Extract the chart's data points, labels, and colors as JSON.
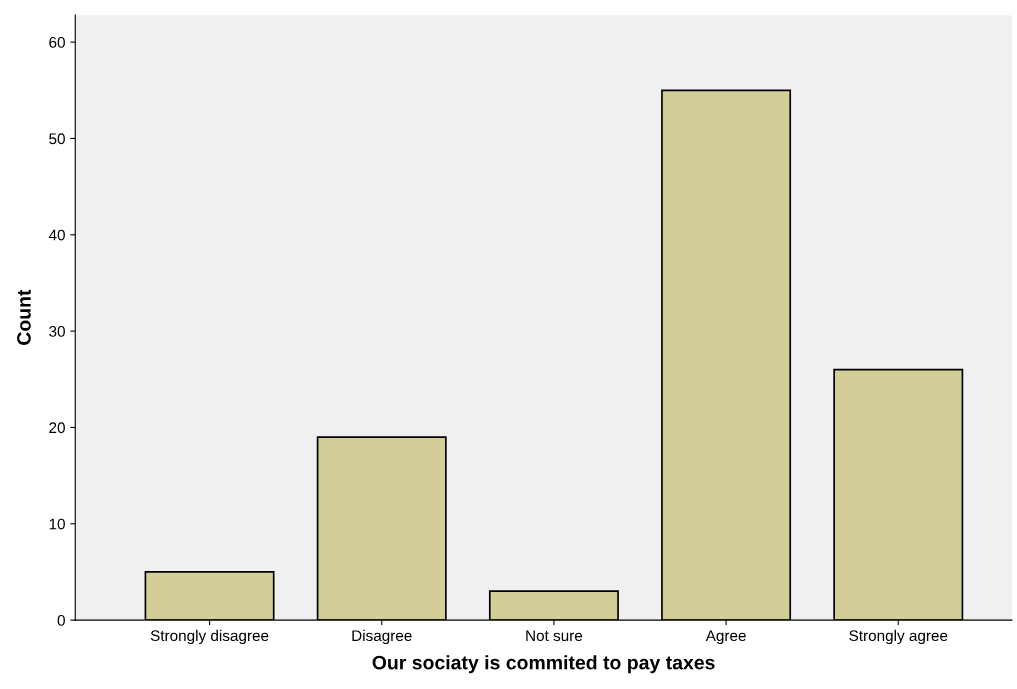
{
  "chart_data": {
    "type": "bar",
    "xlabel": "Our sociaty is commited to pay taxes",
    "ylabel": "Count",
    "categories": [
      "Strongly disagree",
      "Disagree",
      "Not sure",
      "Agree",
      "Strongly agree"
    ],
    "values": [
      5,
      19,
      3,
      55,
      26
    ],
    "color": "#d3ce97",
    "ylim": [
      0,
      62.8
    ],
    "yticks": [
      0,
      10,
      20,
      30,
      40,
      50,
      60
    ],
    "grid": false,
    "legend": false
  }
}
